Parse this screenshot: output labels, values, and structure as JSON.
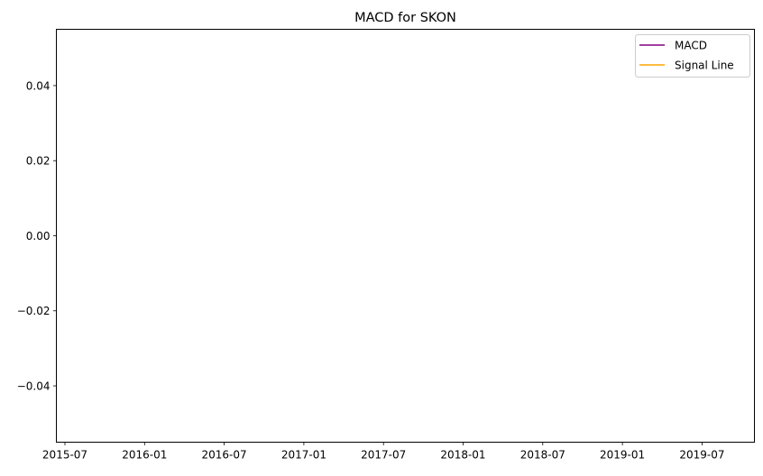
{
  "chart_data": {
    "type": "line",
    "title": "MACD for SKON",
    "xlabel": "",
    "ylabel": "",
    "x_tick_labels": [
      "2015-07",
      "2016-01",
      "2016-07",
      "2017-01",
      "2017-07",
      "2018-01",
      "2018-07",
      "2019-01",
      "2019-07"
    ],
    "y_tick_labels": [
      "0.04",
      "0.02",
      "0.00",
      "−0.02",
      "−0.04"
    ],
    "y_ticks": [
      0.04,
      0.02,
      0.0,
      -0.02,
      -0.04
    ],
    "ylim": [
      -0.055,
      0.055
    ],
    "grid": false,
    "legend_position": "upper right",
    "series": [
      {
        "name": "MACD",
        "color": "#800080",
        "values": []
      },
      {
        "name": "Signal Line",
        "color": "#ffa500",
        "values": []
      }
    ]
  }
}
